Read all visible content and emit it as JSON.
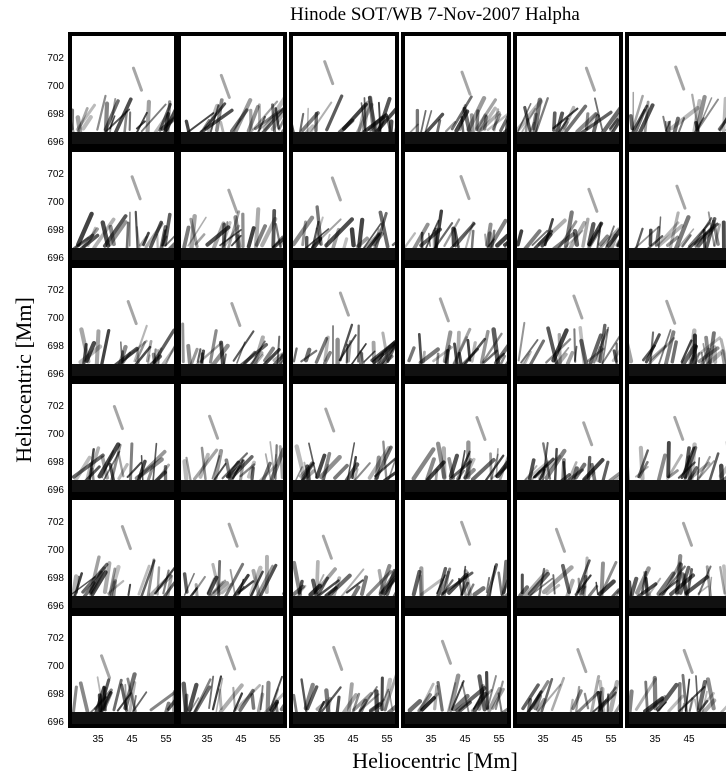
{
  "figure": {
    "title": "Hinode SOT/WB 7-Nov-2007 Halpha",
    "x_label": "Heliocentric [Mm]",
    "y_label": "Heliocentric [Mm]",
    "y_ticks": [
      "702",
      "700",
      "698",
      "696"
    ],
    "x_ticks": [
      "35",
      "45",
      "55"
    ]
  }
}
